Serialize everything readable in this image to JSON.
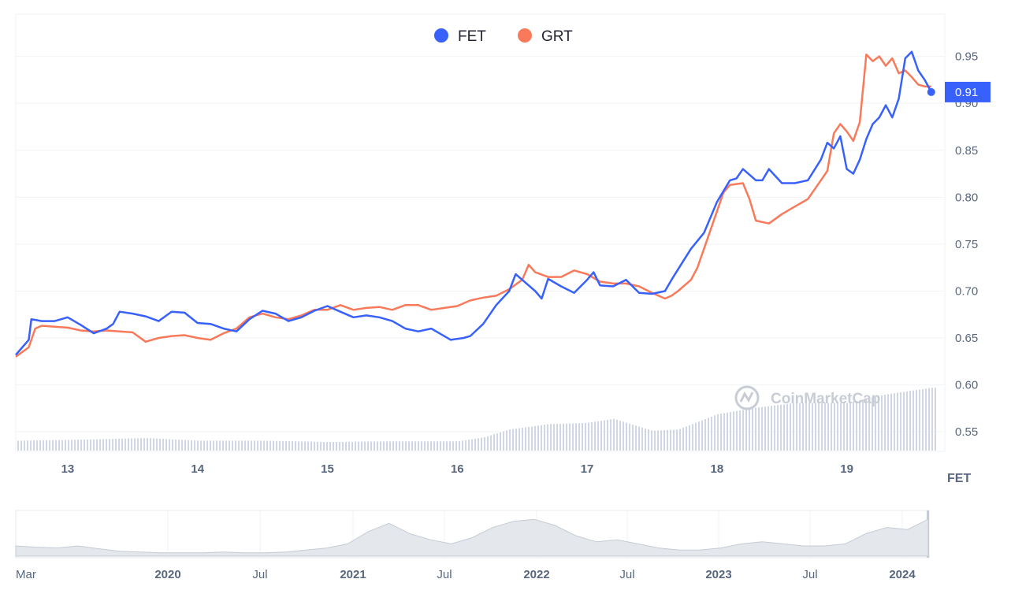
{
  "chart_data": {
    "type": "line",
    "title": "",
    "xlabel": "",
    "ylabel": "",
    "unit_label": "FET",
    "watermark": "CoinMarketCap",
    "legend": {
      "placement": "top-center"
    },
    "grid": {
      "horizontal": true,
      "vertical": false
    },
    "ylim": [
      0.53,
      0.995
    ],
    "xlim": [
      12.6,
      19.7
    ],
    "y_ticks": [
      "0.95",
      "0.90",
      "0.85",
      "0.80",
      "0.75",
      "0.70",
      "0.65",
      "0.60",
      "0.55"
    ],
    "x_ticks": [
      {
        "label": "13",
        "value": 13
      },
      {
        "label": "14",
        "value": 14
      },
      {
        "label": "15",
        "value": 15
      },
      {
        "label": "16",
        "value": 16
      },
      {
        "label": "17",
        "value": 17
      },
      {
        "label": "18",
        "value": 18
      },
      {
        "label": "19",
        "value": 19
      }
    ],
    "current_value_label": "0.91",
    "current_value": 0.912,
    "series": [
      {
        "name": "FET",
        "color": "#3861fb",
        "points": [
          [
            12.6,
            0.632
          ],
          [
            12.7,
            0.648
          ],
          [
            12.72,
            0.67
          ],
          [
            12.8,
            0.668
          ],
          [
            12.9,
            0.668
          ],
          [
            13.0,
            0.672
          ],
          [
            13.1,
            0.664
          ],
          [
            13.2,
            0.655
          ],
          [
            13.3,
            0.66
          ],
          [
            13.35,
            0.665
          ],
          [
            13.4,
            0.678
          ],
          [
            13.5,
            0.676
          ],
          [
            13.6,
            0.673
          ],
          [
            13.7,
            0.668
          ],
          [
            13.8,
            0.678
          ],
          [
            13.9,
            0.677
          ],
          [
            14.0,
            0.666
          ],
          [
            14.1,
            0.665
          ],
          [
            14.2,
            0.66
          ],
          [
            14.3,
            0.657
          ],
          [
            14.4,
            0.67
          ],
          [
            14.5,
            0.679
          ],
          [
            14.6,
            0.676
          ],
          [
            14.7,
            0.668
          ],
          [
            14.8,
            0.672
          ],
          [
            14.9,
            0.679
          ],
          [
            15.0,
            0.684
          ],
          [
            15.1,
            0.678
          ],
          [
            15.2,
            0.672
          ],
          [
            15.3,
            0.674
          ],
          [
            15.4,
            0.672
          ],
          [
            15.5,
            0.668
          ],
          [
            15.6,
            0.66
          ],
          [
            15.7,
            0.657
          ],
          [
            15.8,
            0.66
          ],
          [
            15.95,
            0.648
          ],
          [
            16.05,
            0.65
          ],
          [
            16.1,
            0.652
          ],
          [
            16.2,
            0.665
          ],
          [
            16.3,
            0.685
          ],
          [
            16.4,
            0.7
          ],
          [
            16.45,
            0.718
          ],
          [
            16.5,
            0.712
          ],
          [
            16.6,
            0.7
          ],
          [
            16.65,
            0.692
          ],
          [
            16.7,
            0.713
          ],
          [
            16.8,
            0.705
          ],
          [
            16.9,
            0.698
          ],
          [
            17.0,
            0.712
          ],
          [
            17.05,
            0.72
          ],
          [
            17.1,
            0.706
          ],
          [
            17.2,
            0.705
          ],
          [
            17.3,
            0.712
          ],
          [
            17.4,
            0.698
          ],
          [
            17.5,
            0.697
          ],
          [
            17.6,
            0.7
          ],
          [
            17.65,
            0.712
          ],
          [
            17.7,
            0.723
          ],
          [
            17.8,
            0.745
          ],
          [
            17.9,
            0.762
          ],
          [
            18.0,
            0.795
          ],
          [
            18.1,
            0.818
          ],
          [
            18.15,
            0.82
          ],
          [
            18.2,
            0.83
          ],
          [
            18.3,
            0.818
          ],
          [
            18.35,
            0.818
          ],
          [
            18.4,
            0.83
          ],
          [
            18.5,
            0.815
          ],
          [
            18.6,
            0.815
          ],
          [
            18.7,
            0.818
          ],
          [
            18.8,
            0.84
          ],
          [
            18.85,
            0.858
          ],
          [
            18.9,
            0.852
          ],
          [
            18.95,
            0.865
          ],
          [
            19.0,
            0.83
          ],
          [
            19.05,
            0.825
          ],
          [
            19.1,
            0.84
          ],
          [
            19.15,
            0.862
          ],
          [
            19.2,
            0.878
          ],
          [
            19.25,
            0.885
          ],
          [
            19.3,
            0.898
          ],
          [
            19.35,
            0.885
          ],
          [
            19.4,
            0.905
          ],
          [
            19.45,
            0.948
          ],
          [
            19.5,
            0.955
          ],
          [
            19.55,
            0.935
          ],
          [
            19.6,
            0.925
          ],
          [
            19.65,
            0.912
          ]
        ]
      },
      {
        "name": "GRT",
        "color": "#f87a5a",
        "points": [
          [
            12.6,
            0.63
          ],
          [
            12.7,
            0.64
          ],
          [
            12.75,
            0.66
          ],
          [
            12.8,
            0.663
          ],
          [
            12.9,
            0.662
          ],
          [
            13.0,
            0.661
          ],
          [
            13.1,
            0.658
          ],
          [
            13.2,
            0.657
          ],
          [
            13.3,
            0.658
          ],
          [
            13.4,
            0.657
          ],
          [
            13.5,
            0.656
          ],
          [
            13.6,
            0.646
          ],
          [
            13.7,
            0.65
          ],
          [
            13.8,
            0.652
          ],
          [
            13.9,
            0.653
          ],
          [
            14.0,
            0.65
          ],
          [
            14.1,
            0.648
          ],
          [
            14.2,
            0.655
          ],
          [
            14.3,
            0.66
          ],
          [
            14.4,
            0.672
          ],
          [
            14.5,
            0.676
          ],
          [
            14.6,
            0.672
          ],
          [
            14.7,
            0.67
          ],
          [
            14.8,
            0.674
          ],
          [
            14.9,
            0.68
          ],
          [
            15.0,
            0.68
          ],
          [
            15.1,
            0.685
          ],
          [
            15.2,
            0.68
          ],
          [
            15.3,
            0.682
          ],
          [
            15.4,
            0.683
          ],
          [
            15.5,
            0.68
          ],
          [
            15.6,
            0.685
          ],
          [
            15.7,
            0.685
          ],
          [
            15.8,
            0.68
          ],
          [
            15.9,
            0.682
          ],
          [
            16.0,
            0.684
          ],
          [
            16.1,
            0.69
          ],
          [
            16.2,
            0.693
          ],
          [
            16.3,
            0.695
          ],
          [
            16.4,
            0.702
          ],
          [
            16.5,
            0.712
          ],
          [
            16.55,
            0.728
          ],
          [
            16.6,
            0.72
          ],
          [
            16.7,
            0.715
          ],
          [
            16.8,
            0.715
          ],
          [
            16.9,
            0.722
          ],
          [
            17.0,
            0.718
          ],
          [
            17.1,
            0.71
          ],
          [
            17.2,
            0.708
          ],
          [
            17.3,
            0.708
          ],
          [
            17.4,
            0.705
          ],
          [
            17.5,
            0.698
          ],
          [
            17.6,
            0.692
          ],
          [
            17.65,
            0.695
          ],
          [
            17.7,
            0.7
          ],
          [
            17.8,
            0.712
          ],
          [
            17.85,
            0.725
          ],
          [
            17.9,
            0.745
          ],
          [
            18.0,
            0.785
          ],
          [
            18.05,
            0.805
          ],
          [
            18.1,
            0.813
          ],
          [
            18.2,
            0.815
          ],
          [
            18.25,
            0.798
          ],
          [
            18.3,
            0.775
          ],
          [
            18.4,
            0.772
          ],
          [
            18.5,
            0.782
          ],
          [
            18.6,
            0.79
          ],
          [
            18.7,
            0.798
          ],
          [
            18.8,
            0.818
          ],
          [
            18.85,
            0.828
          ],
          [
            18.9,
            0.868
          ],
          [
            18.95,
            0.878
          ],
          [
            19.0,
            0.87
          ],
          [
            19.05,
            0.86
          ],
          [
            19.1,
            0.88
          ],
          [
            19.15,
            0.952
          ],
          [
            19.2,
            0.945
          ],
          [
            19.25,
            0.95
          ],
          [
            19.3,
            0.94
          ],
          [
            19.35,
            0.948
          ],
          [
            19.4,
            0.932
          ],
          [
            19.45,
            0.935
          ],
          [
            19.5,
            0.928
          ],
          [
            19.55,
            0.92
          ],
          [
            19.6,
            0.918
          ],
          [
            19.65,
            0.918
          ]
        ]
      }
    ],
    "volume": {
      "color": "#d1d6e3",
      "ylim": [
        0,
        1
      ],
      "points": [
        [
          12.6,
          0.15
        ],
        [
          13.0,
          0.16
        ],
        [
          13.6,
          0.19
        ],
        [
          14.0,
          0.15
        ],
        [
          14.5,
          0.15
        ],
        [
          15.0,
          0.13
        ],
        [
          15.5,
          0.14
        ],
        [
          16.0,
          0.14
        ],
        [
          16.2,
          0.2
        ],
        [
          16.4,
          0.32
        ],
        [
          16.7,
          0.4
        ],
        [
          17.0,
          0.42
        ],
        [
          17.2,
          0.48
        ],
        [
          17.5,
          0.3
        ],
        [
          17.7,
          0.32
        ],
        [
          18.0,
          0.55
        ],
        [
          18.3,
          0.65
        ],
        [
          18.6,
          0.72
        ],
        [
          19.0,
          0.72
        ],
        [
          19.3,
          0.85
        ],
        [
          19.65,
          0.95
        ]
      ]
    },
    "navigator": {
      "x_ticks": [
        {
          "label": "Mar",
          "year": false
        },
        {
          "label": "2020",
          "year": true
        },
        {
          "label": "Jul",
          "year": false
        },
        {
          "label": "2021",
          "year": true
        },
        {
          "label": "Jul",
          "year": false
        },
        {
          "label": "2022",
          "year": true
        },
        {
          "label": "Jul",
          "year": false
        },
        {
          "label": "2023",
          "year": true
        },
        {
          "label": "Jul",
          "year": false
        },
        {
          "label": "2024",
          "year": true
        }
      ],
      "series": [
        0.25,
        0.22,
        0.2,
        0.25,
        0.18,
        0.12,
        0.1,
        0.08,
        0.08,
        0.08,
        0.1,
        0.08,
        0.08,
        0.1,
        0.15,
        0.2,
        0.3,
        0.6,
        0.8,
        0.55,
        0.4,
        0.3,
        0.45,
        0.7,
        0.85,
        0.9,
        0.75,
        0.5,
        0.35,
        0.4,
        0.3,
        0.2,
        0.15,
        0.15,
        0.2,
        0.3,
        0.35,
        0.3,
        0.25,
        0.25,
        0.3,
        0.55,
        0.7,
        0.65,
        0.9
      ]
    }
  }
}
